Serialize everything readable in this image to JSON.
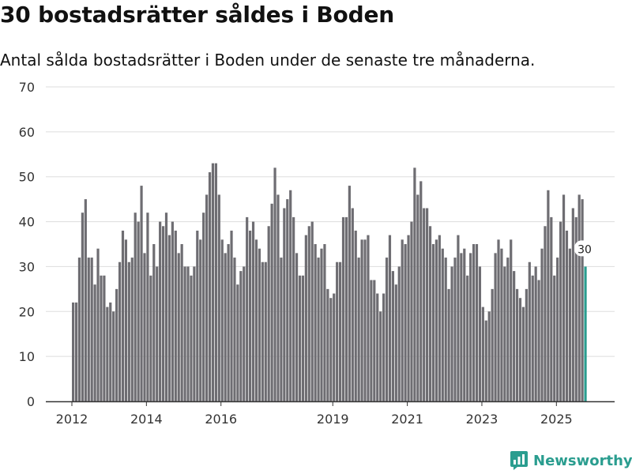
{
  "title": "30 bostadsrätter såldes i Boden",
  "subtitle": "Antal sålda bostadsrätter i Boden under de senaste tre månaderna.",
  "brand": {
    "name": "Newsworthy",
    "logo_icon": "newsworthy-logo-icon"
  },
  "colors": {
    "bar": "#6e6d72",
    "highlight": "#2a9d8f",
    "grid": "#dddddd",
    "axis": "#333333",
    "text": "#333333"
  },
  "chart_data": {
    "type": "bar",
    "title": "30 bostadsrätter såldes i Boden",
    "subtitle": "Antal sålda bostadsrätter i Boden under de senaste tre månaderna.",
    "xlabel": "",
    "ylabel": "",
    "ylim": [
      0,
      70
    ],
    "yticks": [
      0,
      10,
      20,
      30,
      40,
      50,
      60,
      70
    ],
    "grid": true,
    "x_start": 2012.0,
    "x_step": 0.0833,
    "xticks": [
      {
        "label": "2012",
        "value": 2012.0
      },
      {
        "label": "2014",
        "value": 2014.0
      },
      {
        "label": "2016",
        "value": 2016.0
      },
      {
        "label": "2019",
        "value": 2019.0
      },
      {
        "label": "2021",
        "value": 2021.0
      },
      {
        "label": "2023",
        "value": 2023.0
      },
      {
        "label": "2025",
        "value": 2025.0
      }
    ],
    "values": [
      22,
      22,
      32,
      42,
      45,
      32,
      32,
      26,
      34,
      28,
      28,
      21,
      22,
      20,
      25,
      31,
      38,
      36,
      31,
      32,
      42,
      40,
      48,
      33,
      42,
      28,
      35,
      30,
      40,
      39,
      42,
      37,
      40,
      38,
      33,
      35,
      30,
      30,
      28,
      30,
      38,
      36,
      42,
      46,
      51,
      53,
      53,
      46,
      36,
      33,
      35,
      38,
      32,
      26,
      29,
      30,
      41,
      38,
      40,
      36,
      34,
      31,
      31,
      39,
      44,
      52,
      46,
      32,
      43,
      45,
      47,
      41,
      33,
      28,
      28,
      37,
      39,
      40,
      35,
      32,
      34,
      35,
      25,
      23,
      24,
      31,
      31,
      41,
      41,
      48,
      43,
      38,
      32,
      36,
      36,
      37,
      27,
      27,
      24,
      20,
      24,
      32,
      37,
      29,
      26,
      30,
      36,
      35,
      37,
      40,
      52,
      46,
      49,
      43,
      43,
      39,
      35,
      36,
      37,
      34,
      32,
      25,
      30,
      32,
      37,
      33,
      34,
      28,
      33,
      35,
      35,
      30,
      21,
      18,
      20,
      25,
      33,
      36,
      34,
      30,
      32,
      36,
      29,
      25,
      23,
      21,
      25,
      31,
      28,
      30,
      27,
      34,
      39,
      47,
      41,
      28,
      32,
      40,
      46,
      38,
      34,
      43,
      41,
      46,
      45,
      30
    ],
    "highlight": {
      "index": 165,
      "value": 30,
      "label": "30"
    }
  }
}
